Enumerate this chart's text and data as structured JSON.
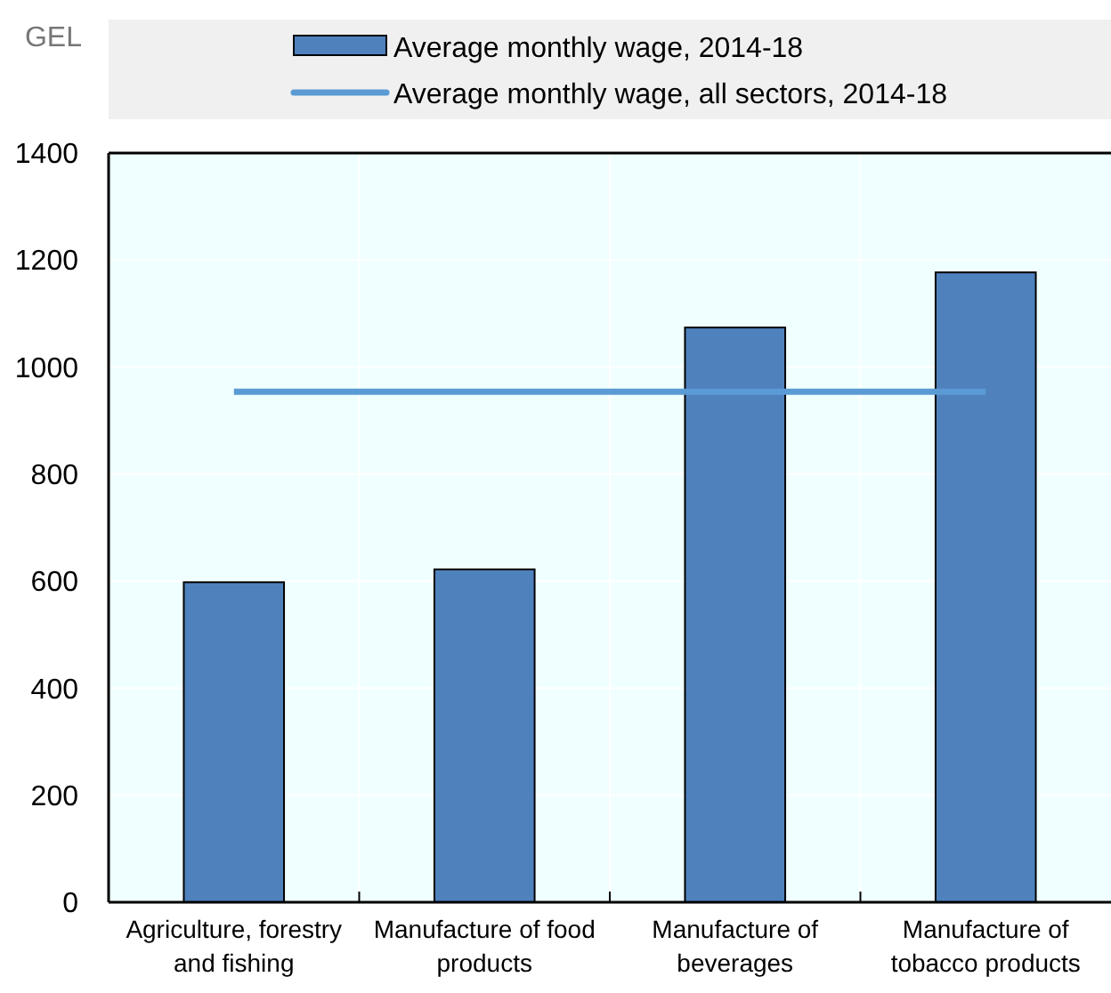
{
  "chart_data": {
    "type": "bar",
    "ylabel": "GEL",
    "categories": [
      "Agriculture, forestry and fishing",
      "Manufacture of food products",
      "Manufacture of beverages",
      "Manufacture of tobacco products"
    ],
    "series": [
      {
        "name": "Average monthly wage, 2014-18",
        "color": "#4f81bd",
        "values": [
          598,
          622,
          1074,
          1177
        ]
      },
      {
        "name": "Average monthly wage, all sectors, 2014-18",
        "type": "line",
        "color": "#5b9bd5",
        "values": [
          954,
          954,
          954,
          954
        ]
      }
    ],
    "ylim": [
      0,
      1400
    ],
    "yticks": [
      0,
      200,
      400,
      600,
      800,
      1000,
      1200,
      1400
    ],
    "grid": true,
    "legend": "top"
  }
}
